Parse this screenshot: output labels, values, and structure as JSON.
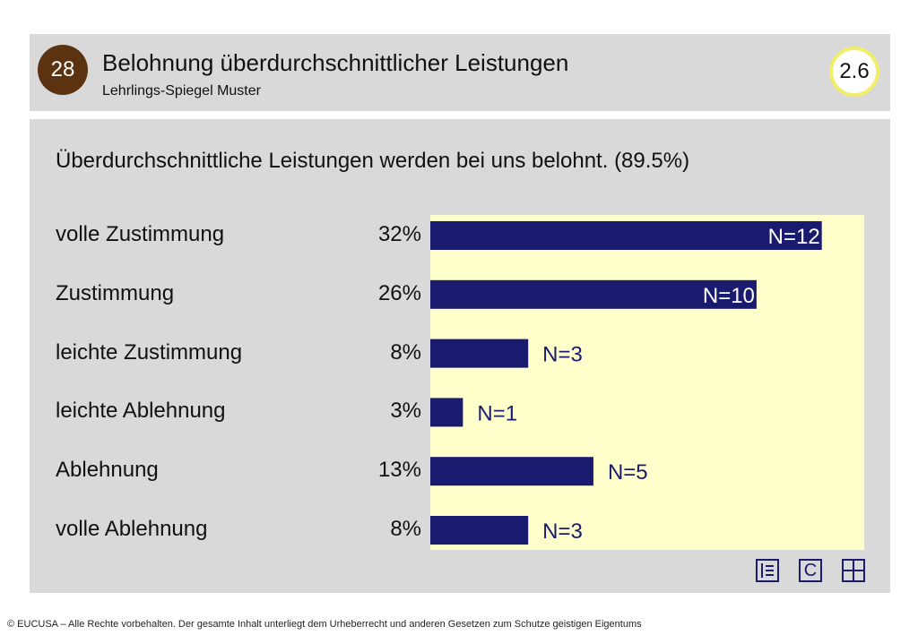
{
  "header": {
    "badge": "28",
    "title": "Belohnung überdurchschnittlicher Leistungen",
    "subtitle": "Lehrlings-Spiegel Muster",
    "score": "2.6"
  },
  "question": "Überdurchschnittliche Leistungen werden bei uns belohnt. (89.5%)",
  "chart_data": {
    "type": "bar",
    "orientation": "horizontal",
    "title": "Überdurchschnittliche Leistungen werden bei uns belohnt. (89.5%)",
    "categories": [
      "volle Zustimmung",
      "Zustimmung",
      "leichte Zustimmung",
      "leichte Ablehnung",
      "Ablehnung",
      "volle Ablehnung"
    ],
    "percent_labels": [
      "32%",
      "26%",
      "8%",
      "3%",
      "13%",
      "8%"
    ],
    "n_labels": [
      "N=12",
      "N=10",
      "N=3",
      "N=1",
      "N=5",
      "N=3"
    ],
    "values": [
      12,
      10,
      3,
      1,
      5,
      3
    ],
    "xlim": [
      0,
      13.3
    ],
    "bar_color": "#1a1a6e",
    "background_color": "#ffffcc",
    "grid": false
  },
  "icons": [
    "list-icon",
    "c-icon",
    "grid-icon"
  ],
  "icon_c_text": "C",
  "footer": "© EUCUSA – Alle Rechte vorbehalten. Der gesamte Inhalt unterliegt dem Urheberrecht und anderen Gesetzen zum Schutze geistigen Eigentums"
}
